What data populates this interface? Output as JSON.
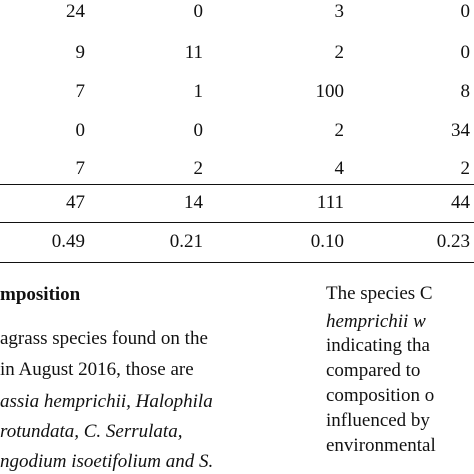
{
  "table": {
    "rows": [
      [
        "24",
        "0",
        "3",
        "0"
      ],
      [
        "9",
        "11",
        "2",
        "0"
      ],
      [
        "7",
        "1",
        "100",
        "8"
      ],
      [
        "0",
        "0",
        "2",
        "34"
      ],
      [
        "7",
        "2",
        "4",
        "2"
      ]
    ],
    "total_row": [
      "47",
      "14",
      "111",
      "44"
    ],
    "index_row": [
      "0.49",
      "0.21",
      "0.10",
      "0.23"
    ]
  },
  "left_column": {
    "heading": "mposition",
    "lines": [
      "agrass species found on the",
      "in August 2016, those are",
      "assia hemprichii, Halophila",
      "rotundata,    C.    Serrulata,",
      "ngodium isoetifolium and S."
    ]
  },
  "right_column": {
    "lines": [
      "The  species  C",
      "hemprichii  w",
      "indicating  tha",
      "compared  to",
      "composition  o",
      "influenced by",
      "environmental"
    ]
  }
}
